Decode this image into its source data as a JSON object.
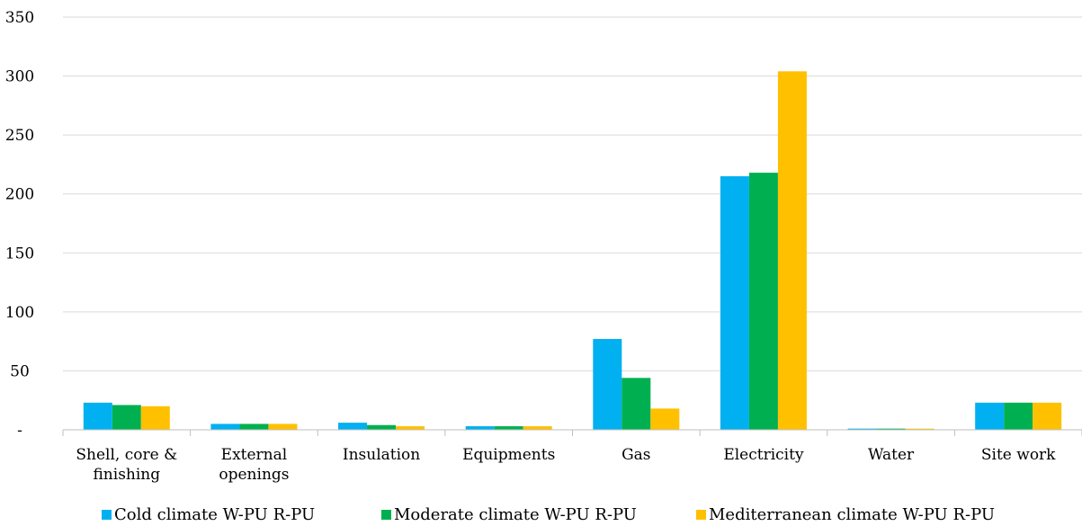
{
  "chart_data": {
    "type": "bar",
    "categories": [
      [
        "Shell, core &",
        "finishing"
      ],
      [
        "External",
        "openings"
      ],
      [
        "Insulation"
      ],
      [
        "Equipments"
      ],
      [
        "Gas"
      ],
      [
        "Electricity"
      ],
      [
        "Water"
      ],
      [
        "Site work"
      ]
    ],
    "series": [
      {
        "name": "Cold climate W-PU R-PU",
        "color": "#00b0f0",
        "values": [
          23,
          5,
          6,
          3,
          77,
          215,
          1,
          23
        ]
      },
      {
        "name": "Moderate climate W-PU R-PU",
        "color": "#00b050",
        "values": [
          21,
          5,
          4,
          3,
          44,
          218,
          1,
          23
        ]
      },
      {
        "name": "Mediterranean climate W-PU R-PU",
        "color": "#ffc000",
        "values": [
          20,
          5,
          3,
          3,
          18,
          304,
          1,
          23
        ]
      }
    ],
    "y_ticks": [
      "-",
      "50",
      "100",
      "150",
      "200",
      "250",
      "300",
      "350"
    ],
    "ylim": [
      0,
      350
    ],
    "grid": "horizontal",
    "legend_position": "bottom"
  }
}
